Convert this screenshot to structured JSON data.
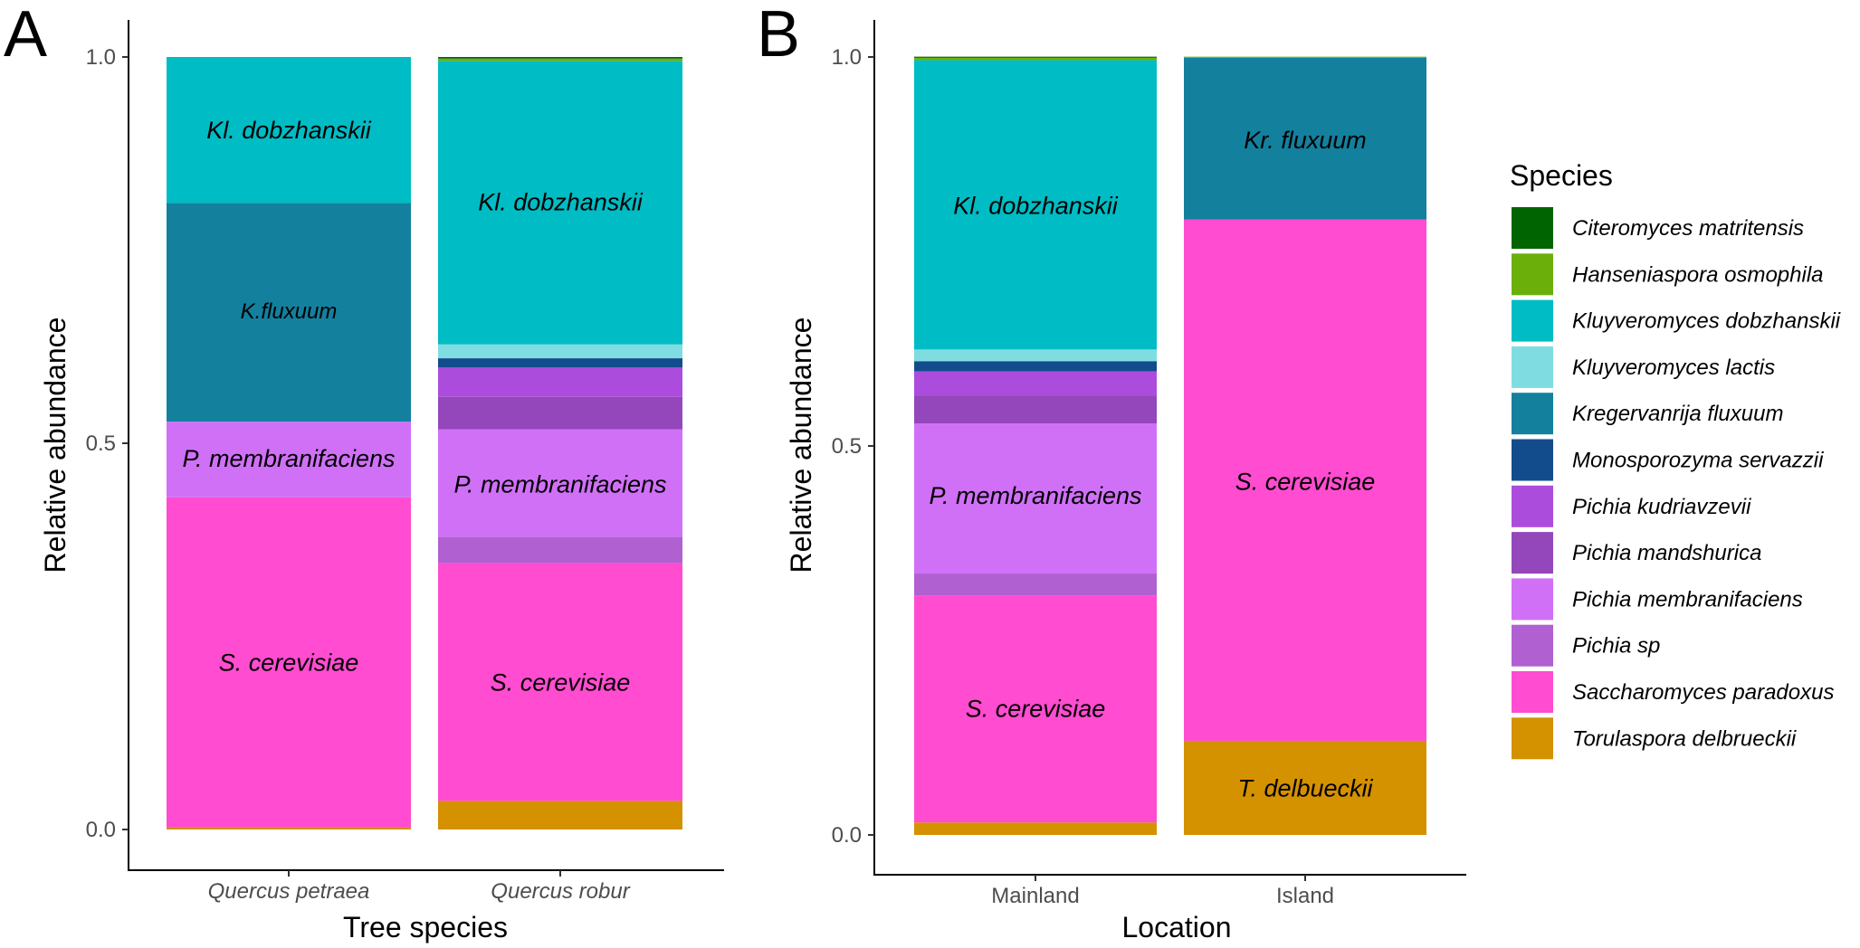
{
  "legend": {
    "title": "Species",
    "entries": [
      {
        "name": "Citeromyces matritensis",
        "color": "#006400"
      },
      {
        "name": "Hanseniaspora osmophila",
        "color": "#6BB00A"
      },
      {
        "name": "Kluyveromyces dobzhanskii",
        "color": "#00BCC4"
      },
      {
        "name": "Kluyveromyces lactis",
        "color": "#7FDDE1"
      },
      {
        "name": "Kregervanrija fluxuum",
        "color": "#13809E"
      },
      {
        "name": "Monosporozyma servazzii",
        "color": "#124C8C"
      },
      {
        "name": "Pichia kudriavzevii",
        "color": "#AC4CDC"
      },
      {
        "name": "Pichia mandshurica",
        "color": "#9447BA"
      },
      {
        "name": "Pichia membranifaciens",
        "color": "#D070F7"
      },
      {
        "name": "Pichia sp",
        "color": "#B060D0"
      },
      {
        "name": "Saccharomyces paradoxus",
        "color": "#FF4CD0"
      },
      {
        "name": "Torulaspora delbrueckii",
        "color": "#D49100"
      }
    ]
  },
  "chart_data": [
    {
      "panel": "A",
      "type": "bar",
      "stacked": true,
      "xlabel": "Tree species",
      "ylabel": "Relative abundance",
      "ylim": [
        0,
        1
      ],
      "yticks": [
        "0.0",
        "0.5",
        "1.0"
      ],
      "categories": [
        "Quercus petraea",
        "Quercus robur"
      ],
      "category_italic": true,
      "series": [
        {
          "name": "Torulaspora delbrueckii",
          "values": [
            0.003,
            0.037
          ]
        },
        {
          "name": "Saccharomyces paradoxus",
          "values": [
            0.427,
            0.308
          ]
        },
        {
          "name": "Pichia sp",
          "values": [
            0.0,
            0.034
          ]
        },
        {
          "name": "Pichia membranifaciens",
          "values": [
            0.098,
            0.139
          ]
        },
        {
          "name": "Pichia mandshurica",
          "values": [
            0.0,
            0.042
          ]
        },
        {
          "name": "Pichia kudriavzevii",
          "values": [
            0.0,
            0.038
          ]
        },
        {
          "name": "Monosporozyma servazzii",
          "values": [
            0.0,
            0.012
          ]
        },
        {
          "name": "Kregervanrija fluxuum",
          "values": [
            0.283,
            0.0
          ]
        },
        {
          "name": "Kluyveromyces lactis",
          "values": [
            0.0,
            0.018
          ]
        },
        {
          "name": "Kluyveromyces dobzhanskii",
          "values": [
            0.189,
            0.367
          ]
        },
        {
          "name": "Hanseniaspora osmophila",
          "values": [
            0.0,
            0.003
          ]
        },
        {
          "name": "Citeromyces matritensis",
          "values": [
            0.0,
            0.002
          ]
        }
      ],
      "annotations": [
        {
          "text": "Kl. dobzhanskii",
          "category": "Quercus petraea",
          "y": 0.905
        },
        {
          "text": "K.fluxuum",
          "category": "Quercus petraea",
          "y": 0.672,
          "small": true
        },
        {
          "text": "P. membranifaciens",
          "category": "Quercus petraea",
          "y": 0.48
        },
        {
          "text": "S. cerevisiae",
          "category": "Quercus petraea",
          "y": 0.216
        },
        {
          "text": "Kl. dobzhanskii",
          "category": "Quercus robur",
          "y": 0.812
        },
        {
          "text": "P. membranifaciens",
          "category": "Quercus robur",
          "y": 0.447
        },
        {
          "text": "S. cerevisiae",
          "category": "Quercus robur",
          "y": 0.19
        }
      ]
    },
    {
      "panel": "B",
      "type": "bar",
      "stacked": true,
      "xlabel": "Location",
      "ylabel": "Relative abundance",
      "ylim": [
        0,
        1
      ],
      "yticks": [
        "0.0",
        "0.5",
        "1.0"
      ],
      "categories": [
        "Mainland",
        "Island"
      ],
      "category_italic": false,
      "series": [
        {
          "name": "Torulaspora delbrueckii",
          "values": [
            0.016,
            0.121
          ]
        },
        {
          "name": "Saccharomyces paradoxus",
          "values": [
            0.292,
            0.67
          ]
        },
        {
          "name": "Pichia sp",
          "values": [
            0.028,
            0.0
          ]
        },
        {
          "name": "Pichia membranifaciens",
          "values": [
            0.193,
            0.0
          ]
        },
        {
          "name": "Pichia mandshurica",
          "values": [
            0.036,
            0.0
          ]
        },
        {
          "name": "Pichia kudriavzevii",
          "values": [
            0.031,
            0.0
          ]
        },
        {
          "name": "Monosporozyma servazzii",
          "values": [
            0.013,
            0.0
          ]
        },
        {
          "name": "Kregervanrija fluxuum",
          "values": [
            0.0,
            0.208
          ]
        },
        {
          "name": "Kluyveromyces lactis",
          "values": [
            0.015,
            0.0
          ]
        },
        {
          "name": "Kluyveromyces dobzhanskii",
          "values": [
            0.372,
            0.0
          ]
        },
        {
          "name": "Hanseniaspora osmophila",
          "values": [
            0.003,
            0.001
          ]
        },
        {
          "name": "Citeromyces matritensis",
          "values": [
            0.001,
            0.0
          ]
        }
      ],
      "annotations": [
        {
          "text": "Kl. dobzhanskii",
          "category": "Mainland",
          "y": 0.809
        },
        {
          "text": "P. membranifaciens",
          "category": "Mainland",
          "y": 0.436
        },
        {
          "text": "S. cerevisiae",
          "category": "Mainland",
          "y": 0.162
        },
        {
          "text": "Kr. fluxuum",
          "category": "Island",
          "y": 0.893
        },
        {
          "text": "S. cerevisiae",
          "category": "Island",
          "y": 0.454
        },
        {
          "text": "T. delbueckii",
          "category": "Island",
          "y": 0.06
        }
      ]
    }
  ]
}
